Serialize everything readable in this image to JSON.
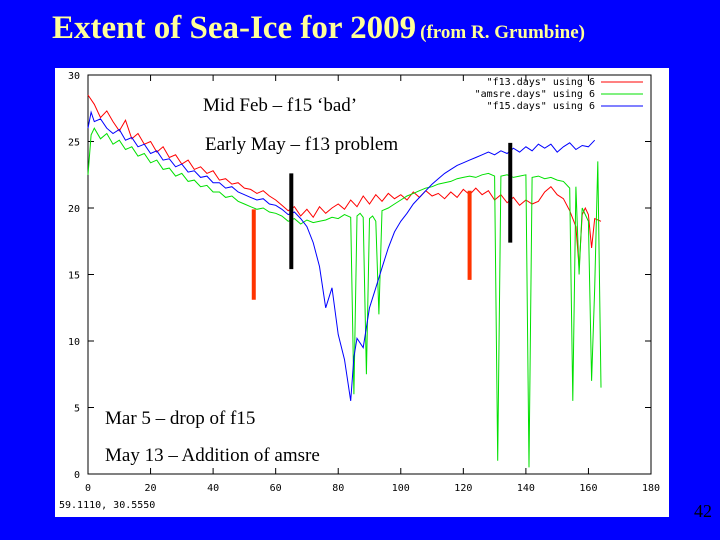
{
  "slide": {
    "title": "Extent of Sea-Ice for 2009",
    "subtitle": "(from R. Grumbine)",
    "slide_number": "42",
    "coord_readout": "59.1110,   30.5550"
  },
  "annotations": {
    "mid_feb": "Mid Feb – f15 ‘bad’",
    "early_may": "Early May – f13 problem",
    "mar5": "Mar 5 – drop of f15",
    "may13": "May 13 – Addition of amsre"
  },
  "colors": {
    "background": "#0000ff",
    "title": "#ffff99",
    "f13": "#ff0000",
    "amsre": "#00e000",
    "f15": "#0000ff",
    "marker_red": "#ff3300",
    "marker_black": "#000000"
  },
  "chart_data": {
    "type": "line",
    "title": "",
    "xlabel": "",
    "ylabel": "",
    "xlim": [
      0,
      180
    ],
    "ylim": [
      0,
      30
    ],
    "xticks": [
      0,
      20,
      40,
      60,
      80,
      100,
      120,
      140,
      160,
      180
    ],
    "yticks": [
      0,
      5,
      10,
      15,
      20,
      25,
      30
    ],
    "grid": false,
    "legend_position": "top-right",
    "series": [
      {
        "name": "\"f13.days\" using 6",
        "color": "#ff0000",
        "points": [
          [
            0,
            28.5
          ],
          [
            2,
            27.8
          ],
          [
            4,
            26.8
          ],
          [
            6,
            27.3
          ],
          [
            8,
            26.5
          ],
          [
            10,
            25.8
          ],
          [
            12,
            26.6
          ],
          [
            14,
            25.2
          ],
          [
            16,
            25.6
          ],
          [
            18,
            24.8
          ],
          [
            20,
            25.0
          ],
          [
            22,
            24.2
          ],
          [
            24,
            24.6
          ],
          [
            26,
            23.8
          ],
          [
            28,
            24.0
          ],
          [
            30,
            23.3
          ],
          [
            32,
            23.6
          ],
          [
            34,
            22.9
          ],
          [
            36,
            23.1
          ],
          [
            38,
            22.6
          ],
          [
            40,
            22.8
          ],
          [
            42,
            22.1
          ],
          [
            44,
            22.2
          ],
          [
            46,
            21.8
          ],
          [
            48,
            21.9
          ],
          [
            50,
            21.5
          ],
          [
            52,
            21.4
          ],
          [
            54,
            21.1
          ],
          [
            56,
            21.3
          ],
          [
            58,
            20.9
          ],
          [
            60,
            20.6
          ],
          [
            62,
            20.2
          ],
          [
            64,
            19.8
          ],
          [
            66,
            20.1
          ],
          [
            68,
            19.4
          ],
          [
            70,
            19.9
          ],
          [
            72,
            19.3
          ],
          [
            74,
            20.1
          ],
          [
            76,
            19.6
          ],
          [
            78,
            20.0
          ],
          [
            80,
            20.3
          ],
          [
            82,
            19.9
          ],
          [
            84,
            20.6
          ],
          [
            86,
            20.1
          ],
          [
            88,
            20.9
          ],
          [
            90,
            20.3
          ],
          [
            92,
            21.0
          ],
          [
            94,
            20.5
          ],
          [
            96,
            21.1
          ],
          [
            98,
            20.7
          ],
          [
            100,
            21.0
          ],
          [
            102,
            20.6
          ],
          [
            104,
            21.2
          ],
          [
            106,
            20.8
          ],
          [
            108,
            21.3
          ],
          [
            110,
            20.9
          ],
          [
            112,
            21.1
          ],
          [
            114,
            20.7
          ],
          [
            116,
            21.2
          ],
          [
            118,
            20.8
          ],
          [
            120,
            21.4
          ],
          [
            122,
            21.0
          ],
          [
            124,
            21.5
          ],
          [
            126,
            21.0
          ],
          [
            128,
            21.3
          ],
          [
            130,
            20.6
          ],
          [
            132,
            21.0
          ],
          [
            134,
            20.4
          ],
          [
            136,
            20.8
          ],
          [
            138,
            20.2
          ],
          [
            140,
            20.6
          ],
          [
            142,
            20.3
          ],
          [
            144,
            20.5
          ],
          [
            146,
            21.2
          ],
          [
            148,
            21.6
          ],
          [
            150,
            21.0
          ],
          [
            152,
            20.7
          ],
          [
            154,
            19.8
          ],
          [
            156,
            18.6
          ],
          [
            157,
            15.5
          ],
          [
            158,
            19.5
          ],
          [
            159,
            20.0
          ],
          [
            160,
            19.5
          ],
          [
            161,
            17.0
          ],
          [
            162,
            19.2
          ],
          [
            164,
            19.0
          ]
        ]
      },
      {
        "name": "\"amsre.days\" using 6",
        "color": "#00e000",
        "points": [
          [
            0,
            22.5
          ],
          [
            1,
            25.5
          ],
          [
            2,
            26.0
          ],
          [
            4,
            25.2
          ],
          [
            6,
            25.6
          ],
          [
            8,
            24.8
          ],
          [
            10,
            25.1
          ],
          [
            12,
            24.4
          ],
          [
            14,
            24.6
          ],
          [
            16,
            23.9
          ],
          [
            18,
            24.1
          ],
          [
            20,
            23.4
          ],
          [
            22,
            23.6
          ],
          [
            24,
            22.9
          ],
          [
            26,
            23.0
          ],
          [
            28,
            22.4
          ],
          [
            30,
            22.6
          ],
          [
            32,
            22.0
          ],
          [
            34,
            22.1
          ],
          [
            36,
            21.6
          ],
          [
            38,
            21.7
          ],
          [
            40,
            21.2
          ],
          [
            42,
            21.2
          ],
          [
            44,
            20.8
          ],
          [
            46,
            20.9
          ],
          [
            48,
            20.5
          ],
          [
            50,
            20.3
          ],
          [
            52,
            20.1
          ],
          [
            54,
            19.9
          ],
          [
            56,
            20.0
          ],
          [
            58,
            19.7
          ],
          [
            60,
            19.6
          ],
          [
            62,
            19.4
          ],
          [
            64,
            19.0
          ],
          [
            66,
            19.2
          ],
          [
            68,
            18.8
          ],
          [
            70,
            19.1
          ],
          [
            72,
            18.9
          ],
          [
            74,
            19.0
          ],
          [
            76,
            19.1
          ],
          [
            78,
            19.3
          ],
          [
            80,
            19.2
          ],
          [
            82,
            19.5
          ],
          [
            84,
            19.3
          ],
          [
            85,
            6.0
          ],
          [
            86,
            19.4
          ],
          [
            87,
            19.6
          ],
          [
            88,
            19.3
          ],
          [
            89,
            7.5
          ],
          [
            90,
            19.2
          ],
          [
            91,
            19.4
          ],
          [
            92,
            19.0
          ],
          [
            93,
            12.0
          ],
          [
            94,
            19.8
          ],
          [
            96,
            20.0
          ],
          [
            98,
            20.3
          ],
          [
            100,
            20.6
          ],
          [
            102,
            20.9
          ],
          [
            104,
            21.1
          ],
          [
            106,
            21.3
          ],
          [
            108,
            21.5
          ],
          [
            110,
            21.6
          ],
          [
            112,
            21.8
          ],
          [
            114,
            21.9
          ],
          [
            116,
            22.0
          ],
          [
            118,
            22.2
          ],
          [
            120,
            22.3
          ],
          [
            122,
            22.4
          ],
          [
            124,
            22.3
          ],
          [
            126,
            22.5
          ],
          [
            128,
            22.6
          ],
          [
            130,
            22.4
          ],
          [
            131,
            1.0
          ],
          [
            132,
            22.4
          ],
          [
            134,
            22.5
          ],
          [
            136,
            22.3
          ],
          [
            138,
            22.4
          ],
          [
            140,
            22.5
          ],
          [
            141,
            0.5
          ],
          [
            142,
            22.3
          ],
          [
            144,
            22.4
          ],
          [
            146,
            22.2
          ],
          [
            148,
            22.3
          ],
          [
            150,
            22.1
          ],
          [
            152,
            22.0
          ],
          [
            154,
            21.5
          ],
          [
            155,
            5.5
          ],
          [
            156,
            21.6
          ],
          [
            157,
            15.0
          ],
          [
            158,
            20.0
          ],
          [
            160,
            19.0
          ],
          [
            161,
            7.0
          ],
          [
            162,
            14.0
          ],
          [
            163,
            23.5
          ],
          [
            164,
            6.5
          ]
        ]
      },
      {
        "name": "\"f15.days\" using 6",
        "color": "#0000ff",
        "points": [
          [
            0,
            26.0
          ],
          [
            1,
            27.2
          ],
          [
            2,
            26.5
          ],
          [
            4,
            26.7
          ],
          [
            6,
            26.0
          ],
          [
            8,
            25.6
          ],
          [
            10,
            25.9
          ],
          [
            12,
            25.1
          ],
          [
            14,
            25.3
          ],
          [
            16,
            24.6
          ],
          [
            18,
            24.8
          ],
          [
            20,
            24.1
          ],
          [
            22,
            24.3
          ],
          [
            24,
            23.6
          ],
          [
            26,
            23.7
          ],
          [
            28,
            23.1
          ],
          [
            30,
            23.3
          ],
          [
            32,
            22.7
          ],
          [
            34,
            22.8
          ],
          [
            36,
            22.3
          ],
          [
            38,
            22.4
          ],
          [
            40,
            21.9
          ],
          [
            42,
            21.9
          ],
          [
            44,
            21.5
          ],
          [
            46,
            21.6
          ],
          [
            48,
            21.2
          ],
          [
            50,
            21.0
          ],
          [
            52,
            20.8
          ],
          [
            54,
            20.6
          ],
          [
            56,
            20.7
          ],
          [
            58,
            20.3
          ],
          [
            60,
            20.2
          ],
          [
            62,
            19.9
          ],
          [
            64,
            19.5
          ],
          [
            66,
            19.7
          ],
          [
            68,
            19.2
          ],
          [
            70,
            18.6
          ],
          [
            72,
            17.4
          ],
          [
            74,
            15.6
          ],
          [
            76,
            12.5
          ],
          [
            78,
            14.0
          ],
          [
            80,
            10.5
          ],
          [
            82,
            8.6
          ],
          [
            84,
            5.5
          ],
          [
            85,
            8.8
          ],
          [
            86,
            10.2
          ],
          [
            88,
            9.5
          ],
          [
            90,
            12.5
          ],
          [
            92,
            14.0
          ],
          [
            94,
            15.5
          ],
          [
            96,
            17.0
          ],
          [
            98,
            18.2
          ],
          [
            100,
            19.0
          ],
          [
            102,
            19.6
          ],
          [
            104,
            20.3
          ],
          [
            106,
            20.8
          ],
          [
            108,
            21.3
          ],
          [
            110,
            21.8
          ],
          [
            112,
            22.2
          ],
          [
            114,
            22.6
          ],
          [
            116,
            22.9
          ],
          [
            118,
            23.2
          ],
          [
            120,
            23.4
          ],
          [
            122,
            23.6
          ],
          [
            124,
            23.8
          ],
          [
            126,
            24.0
          ],
          [
            128,
            24.2
          ],
          [
            130,
            24.0
          ],
          [
            132,
            24.3
          ],
          [
            134,
            24.1
          ],
          [
            136,
            24.5
          ],
          [
            138,
            24.2
          ],
          [
            140,
            24.6
          ],
          [
            142,
            24.3
          ],
          [
            144,
            24.8
          ],
          [
            146,
            24.5
          ],
          [
            148,
            24.8
          ],
          [
            150,
            24.2
          ],
          [
            152,
            24.6
          ],
          [
            154,
            24.9
          ],
          [
            156,
            24.4
          ],
          [
            158,
            24.7
          ],
          [
            160,
            24.6
          ],
          [
            162,
            25.1
          ]
        ]
      }
    ],
    "markers": [
      {
        "x": 53,
        "y_top": 19.9,
        "y_bottom": 13.1,
        "color": "#ff3300"
      },
      {
        "x": 65,
        "y_top": 22.6,
        "y_bottom": 15.4,
        "color": "#000000"
      },
      {
        "x": 122,
        "y_top": 21.3,
        "y_bottom": 14.6,
        "color": "#ff3300"
      },
      {
        "x": 135,
        "y_top": 24.9,
        "y_bottom": 17.4,
        "color": "#000000"
      }
    ]
  }
}
